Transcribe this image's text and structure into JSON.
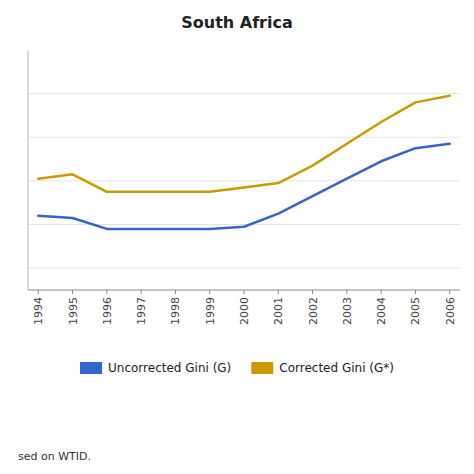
{
  "chart_data": {
    "type": "line",
    "title": "South Africa",
    "x": [
      1994,
      1995,
      1996,
      1997,
      1998,
      1999,
      2000,
      2001,
      2002,
      2003,
      2004,
      2005,
      2006
    ],
    "series": [
      {
        "name": "Uncorrected Gini  (G)",
        "color": "#3366CC",
        "values": [
          0.52,
          0.515,
          0.49,
          0.49,
          0.49,
          0.49,
          0.495,
          0.525,
          0.565,
          0.605,
          0.645,
          0.675,
          0.685
        ]
      },
      {
        "name": "Corrected Gini (G*)",
        "color": "#CC9900",
        "values": [
          0.605,
          0.615,
          0.575,
          0.575,
          0.575,
          0.575,
          0.585,
          0.595,
          0.635,
          0.685,
          0.735,
          0.78,
          0.795
        ]
      }
    ],
    "xlim": [
      1993.7,
      2006.3
    ],
    "xticks": [
      1994,
      1995,
      1996,
      1997,
      1998,
      1999,
      2000,
      2001,
      2002,
      2003,
      2004,
      2005,
      2006
    ],
    "ylim": [
      0.35,
      0.9
    ],
    "yticks": [
      0.4,
      0.5,
      0.6,
      0.7,
      0.8
    ],
    "grid": true,
    "tick_labels": "x",
    "legend": "bottom",
    "annotations": [
      "sed on WTID."
    ]
  }
}
